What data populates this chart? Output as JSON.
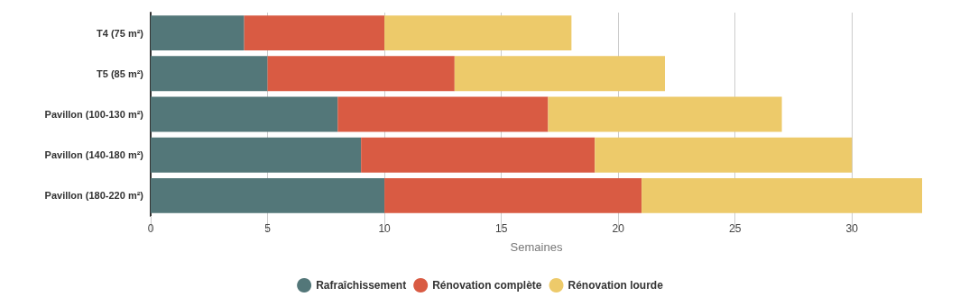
{
  "chart_data": {
    "type": "bar",
    "orientation": "horizontal",
    "stacked": true,
    "xlabel": "Semaines",
    "categories": [
      "T4 (75 m²)",
      "T5 (85 m²)",
      "Pavillon (100-130 m²)",
      "Pavillon (140-180 m²)",
      "Pavillon (180-220 m²)"
    ],
    "series": [
      {
        "name": "Rafraîchissement",
        "color": "#537779",
        "values": [
          4,
          5,
          8,
          9,
          10
        ]
      },
      {
        "name": "Rénovation complète",
        "color": "#d95b43",
        "values": [
          6,
          8,
          9,
          10,
          11
        ]
      },
      {
        "name": "Rénovation lourde",
        "color": "#edca6a",
        "values": [
          8,
          9,
          10,
          11,
          12
        ]
      }
    ],
    "xlim": [
      0,
      33
    ],
    "xticks": [
      0,
      5,
      10,
      15,
      20,
      25,
      30
    ],
    "grid": "x",
    "legend": "bottom"
  }
}
